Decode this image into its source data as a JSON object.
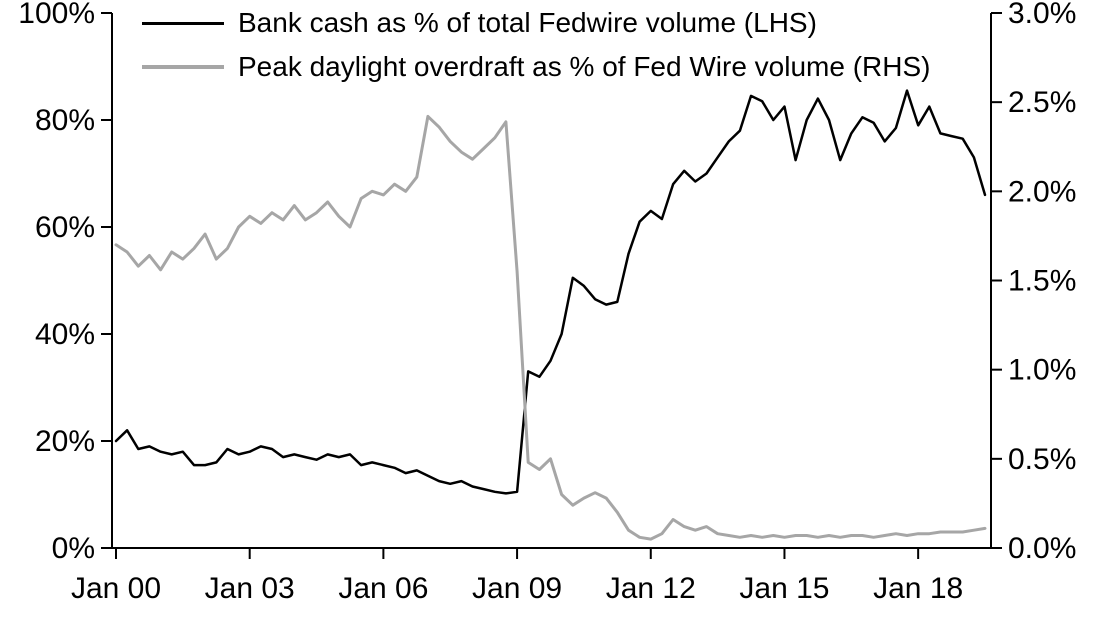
{
  "chart_data": {
    "type": "line",
    "legend_position": "top-left-inside",
    "x_axis": {
      "tick_labels": [
        "Jan 00",
        "Jan 03",
        "Jan 06",
        "Jan 09",
        "Jan 12",
        "Jan 15",
        "Jan 18"
      ],
      "tick_years": [
        2000,
        2003,
        2006,
        2009,
        2012,
        2015,
        2018
      ]
    },
    "left_axis": {
      "min": 0,
      "max": 100,
      "tick_values": [
        0,
        20,
        40,
        60,
        80,
        100
      ],
      "tick_labels": [
        "0%",
        "20%",
        "40%",
        "60%",
        "80%",
        "100%"
      ]
    },
    "right_axis": {
      "min": 0,
      "max": 3,
      "tick_values": [
        0,
        0.5,
        1,
        1.5,
        2,
        2.5,
        3
      ],
      "tick_labels": [
        "0.0%",
        "0.5%",
        "1.0%",
        "1.5%",
        "2.0%",
        "2.5%",
        "3.0%"
      ]
    },
    "x_years": [
      2000,
      2000.25,
      2000.5,
      2000.75,
      2001,
      2001.25,
      2001.5,
      2001.75,
      2002,
      2002.25,
      2002.5,
      2002.75,
      2003,
      2003.25,
      2003.5,
      2003.75,
      2004,
      2004.25,
      2004.5,
      2004.75,
      2005,
      2005.25,
      2005.5,
      2005.75,
      2006,
      2006.25,
      2006.5,
      2006.75,
      2007,
      2007.25,
      2007.5,
      2007.75,
      2008,
      2008.25,
      2008.5,
      2008.75,
      2009,
      2009.25,
      2009.5,
      2009.75,
      2010,
      2010.25,
      2010.5,
      2010.75,
      2011,
      2011.25,
      2011.5,
      2011.75,
      2012,
      2012.25,
      2012.5,
      2012.75,
      2013,
      2013.25,
      2013.5,
      2013.75,
      2014,
      2014.25,
      2014.5,
      2014.75,
      2015,
      2015.25,
      2015.5,
      2015.75,
      2016,
      2016.25,
      2016.5,
      2016.75,
      2017,
      2017.25,
      2017.5,
      2017.75,
      2018,
      2018.25,
      2018.5,
      2018.75,
      2019,
      2019.25,
      2019.5
    ],
    "series": [
      {
        "name": "Bank cash as % of total Fedwire volume (LHS)",
        "axis": "left",
        "color": "#000000",
        "line_width": 2.5,
        "values": [
          20,
          22,
          18.5,
          19,
          18,
          17.5,
          18,
          15.5,
          15.5,
          16,
          18.5,
          17.5,
          18,
          19,
          18.5,
          17,
          17.5,
          17,
          16.5,
          17.5,
          17,
          17.5,
          15.5,
          16,
          15.5,
          15,
          14,
          14.5,
          13.5,
          12.5,
          12,
          12.5,
          11.5,
          11,
          10.5,
          10.2,
          10.5,
          33,
          32,
          35,
          40,
          50.5,
          49,
          46.5,
          45.5,
          46,
          55,
          61,
          63,
          61.5,
          68,
          70.5,
          68.5,
          70,
          73,
          76,
          78,
          84.5,
          83.5,
          80,
          82.5,
          72.5,
          80,
          84,
          80,
          72.5,
          77.5,
          80.5,
          79.5,
          76,
          78.5,
          85.5,
          79,
          82.5,
          77.5,
          77,
          76.5,
          73,
          66
        ]
      },
      {
        "name": "Peak daylight overdraft as % of Fed Wire volume (RHS)",
        "axis": "right",
        "color": "#a6a6a6",
        "line_width": 3,
        "values": [
          1.7,
          1.66,
          1.58,
          1.64,
          1.56,
          1.66,
          1.62,
          1.68,
          1.76,
          1.62,
          1.68,
          1.8,
          1.86,
          1.82,
          1.88,
          1.84,
          1.92,
          1.84,
          1.88,
          1.94,
          1.86,
          1.8,
          1.96,
          2.0,
          1.98,
          2.04,
          2.0,
          2.08,
          2.42,
          2.36,
          2.28,
          2.22,
          2.18,
          2.24,
          2.3,
          2.39,
          1.55,
          0.48,
          0.44,
          0.5,
          0.3,
          0.24,
          0.28,
          0.31,
          0.28,
          0.2,
          0.1,
          0.06,
          0.05,
          0.08,
          0.16,
          0.12,
          0.1,
          0.12,
          0.08,
          0.07,
          0.06,
          0.07,
          0.06,
          0.07,
          0.06,
          0.07,
          0.07,
          0.06,
          0.07,
          0.06,
          0.07,
          0.07,
          0.06,
          0.07,
          0.08,
          0.07,
          0.08,
          0.08,
          0.09,
          0.09,
          0.09,
          0.1,
          0.11
        ]
      }
    ]
  }
}
